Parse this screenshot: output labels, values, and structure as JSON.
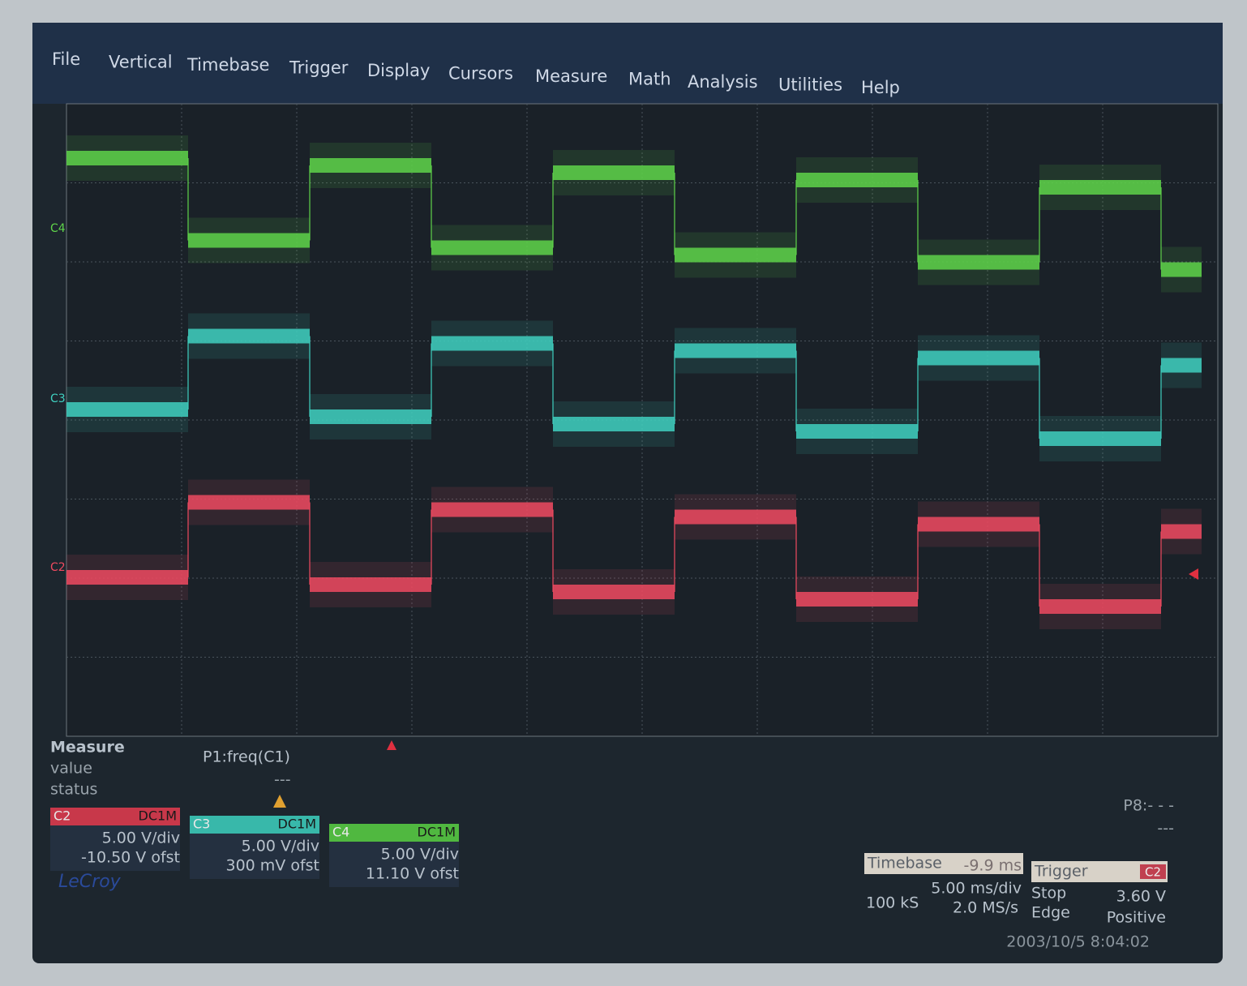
{
  "menu": [
    "File",
    "Vertical",
    "Timebase",
    "Trigger",
    "Display",
    "Cursors",
    "Measure",
    "Math",
    "Analysis",
    "Utilities",
    "Help"
  ],
  "channel_markers": [
    "C4",
    "C3",
    "C2"
  ],
  "measure": {
    "title": "Measure",
    "rows": [
      "value",
      "status"
    ],
    "param": "P1:freq(C1)",
    "param_value": "---",
    "p8": "P8:- - -",
    "p8_value": "---"
  },
  "channels": [
    {
      "name": "C2",
      "coupling": "DC1M",
      "scale": "5.00 V/div",
      "offset": "-10.50 V ofst"
    },
    {
      "name": "C3",
      "coupling": "DC1M",
      "scale": "5.00 V/div",
      "offset": "300 mV ofst"
    },
    {
      "name": "C4",
      "coupling": "DC1M",
      "scale": "5.00 V/div",
      "offset": "11.10 V ofst"
    }
  ],
  "logo": "LeCroy",
  "timebase": {
    "label": "Timebase",
    "delay": "-9.9 ms",
    "scale": "5.00 ms/div",
    "samples": "100 kS",
    "rate": "2.0 MS/s"
  },
  "trigger": {
    "label": "Trigger",
    "source": "C2",
    "mode": "Stop",
    "level": "3.60 V",
    "type": "Edge",
    "slope": "Positive"
  },
  "timestamp": "2003/10/5 8:04:02"
}
